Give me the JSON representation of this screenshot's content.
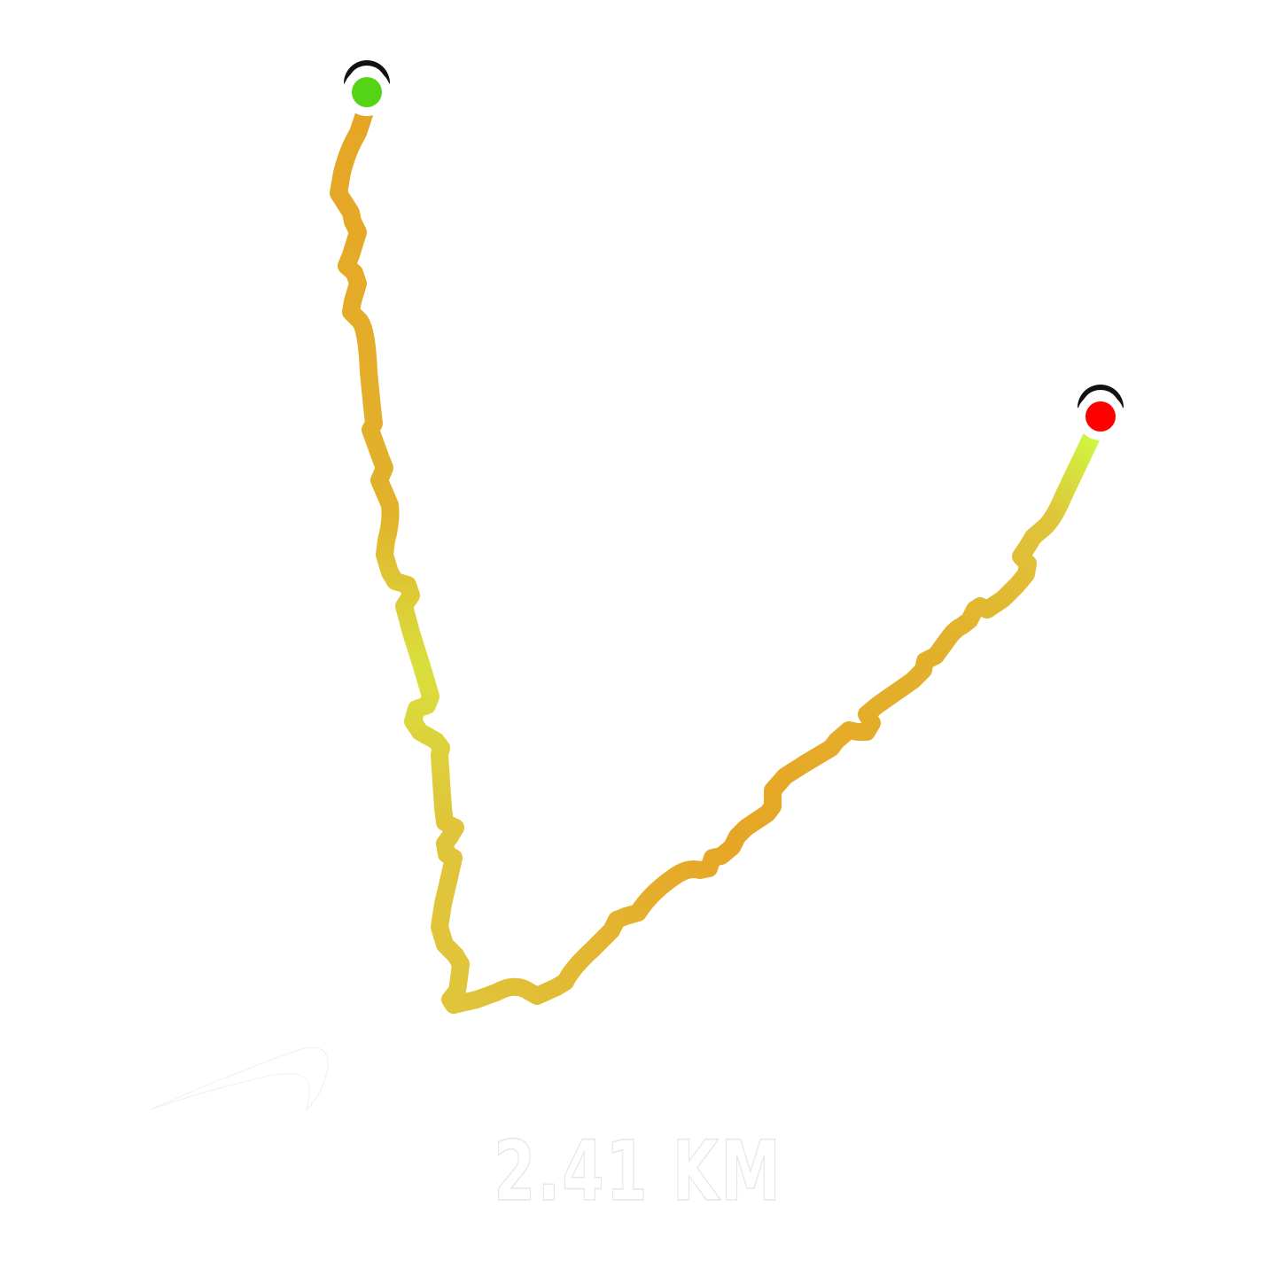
{
  "summary": {
    "distance_label": "2.41 KM"
  },
  "route": {
    "start_marker_color": "#55d316",
    "end_marker_color": "#ff0000",
    "gradient_colors": [
      "#e6a525",
      "#e0c43a",
      "#d7ea3a",
      "#ccff42"
    ]
  },
  "logo": {
    "icon": "swoosh-logo-icon",
    "color": "#ffffff"
  }
}
